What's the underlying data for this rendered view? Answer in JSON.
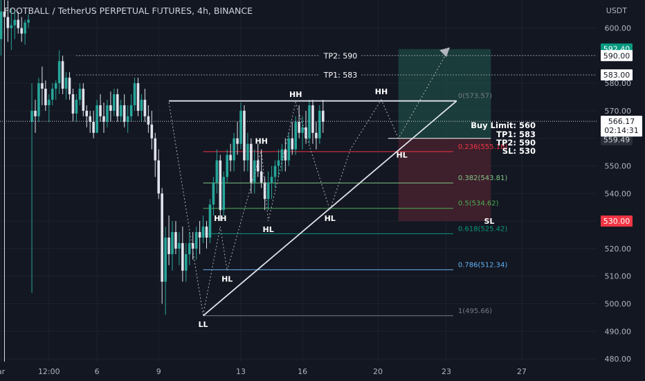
{
  "header": {
    "title": "FOOTBALL / TetherUS PERPETUAL FUTURES, 4h, BINANCE",
    "currency": "USDT"
  },
  "colors": {
    "background": "#131722",
    "up": "#26a69a",
    "down": "#e0e3eb",
    "grid": "#1e222d",
    "text": "#b2b5be",
    "target_zone": "#1d4a44",
    "stop_zone": "#4a2230"
  },
  "chart_data": {
    "type": "candlestick",
    "title": "FOOTBALL / TetherUS PERPETUAL FUTURES, 4h, BINANCE",
    "ylabel": "USDT",
    "ylim": [
      479,
      613
    ],
    "y_ticks": [
      480,
      490,
      500,
      510,
      520,
      530,
      540,
      550,
      560,
      570,
      580,
      590,
      600
    ],
    "x_ticks": [
      {
        "label": "ar",
        "bar": 0
      },
      {
        "label": "12:00",
        "bar": 14
      },
      {
        "label": "6",
        "bar": 28
      },
      {
        "label": "9",
        "bar": 46
      },
      {
        "label": "13",
        "bar": 70
      },
      {
        "label": "16",
        "bar": 88
      },
      {
        "label": "20",
        "bar": 110
      },
      {
        "label": "23",
        "bar": 130
      },
      {
        "label": "27",
        "bar": 152
      }
    ],
    "current_price": "566.17",
    "countdown": "02:14:31",
    "price_tags": [
      {
        "label": "592.40",
        "value": 592.4,
        "kind": "target"
      },
      {
        "label": "590.00",
        "value": 590.0,
        "kind": "neutral"
      },
      {
        "label": "583.00",
        "value": 583.0,
        "kind": "neutral"
      },
      {
        "label": "559.49",
        "value": 559.49,
        "kind": "muted"
      },
      {
        "label": "530.00",
        "value": 530.0,
        "kind": "stop"
      }
    ],
    "fibonacci": [
      {
        "label": "0(573.57)",
        "level": 573.57,
        "color": "#787b86"
      },
      {
        "label": "0.236(555.18)",
        "level": 555.18,
        "color": "#f23645"
      },
      {
        "label": "0.382(543.81)",
        "level": 543.81,
        "color": "#81c784"
      },
      {
        "label": "0.5(534.62)",
        "level": 534.62,
        "color": "#4caf50"
      },
      {
        "label": "0.618(525.42)",
        "level": 525.42,
        "color": "#089981"
      },
      {
        "label": "0.786(512.34)",
        "level": 512.34,
        "color": "#64b5f6"
      },
      {
        "label": "1(495.66)",
        "level": 495.66,
        "color": "#787b86"
      }
    ],
    "targets": [
      {
        "label": "TP2: 590",
        "value": 590
      },
      {
        "label": "TP1: 583",
        "value": 583
      }
    ],
    "trade_text": [
      "Buy Limit: 560",
      "TP1: 583",
      "TP2: 590",
      "SL: 530"
    ],
    "sl_label": "SL",
    "swing_labels": [
      {
        "label": "LL",
        "bar": 47,
        "price": 495.66,
        "pos": "below"
      },
      {
        "label": "HH",
        "bar": 53,
        "price": 528,
        "pos": "above"
      },
      {
        "label": "HL",
        "bar": 54,
        "price": 512,
        "pos": "below"
      },
      {
        "label": "HH",
        "bar": 63,
        "price": 556,
        "pos": "above"
      },
      {
        "label": "HL",
        "bar": 64,
        "price": 530,
        "pos": "below"
      },
      {
        "label": "HH",
        "bar": 71,
        "price": 573,
        "pos": "above"
      },
      {
        "label": "HL",
        "bar": 79,
        "price": 534,
        "pos": "below"
      },
      {
        "label": "HH",
        "bar": 91,
        "price": 574,
        "pos": "above"
      },
      {
        "label": "HL",
        "bar": 95,
        "price": 557,
        "pos": "below"
      }
    ],
    "candles": [
      [
        596,
        612,
        590,
        606
      ],
      [
        606,
        612,
        598,
        604
      ],
      [
        604,
        610,
        595,
        600
      ],
      [
        600,
        607,
        592,
        601
      ],
      [
        601,
        606,
        596,
        603
      ],
      [
        603,
        606,
        598,
        600
      ],
      [
        600,
        604,
        595,
        598
      ],
      [
        598,
        603,
        594,
        602
      ],
      [
        602,
        605,
        600,
        603
      ],
      [
        566,
        580,
        504,
        570
      ],
      [
        570,
        574,
        562,
        568
      ],
      [
        568,
        582,
        566,
        580
      ],
      [
        580,
        586,
        572,
        578
      ],
      [
        578,
        581,
        570,
        572
      ],
      [
        572,
        576,
        566,
        574
      ],
      [
        574,
        580,
        572,
        578
      ],
      [
        578,
        581,
        574,
        580
      ],
      [
        580,
        592,
        576,
        588
      ],
      [
        588,
        590,
        576,
        578
      ],
      [
        578,
        584,
        574,
        582
      ],
      [
        582,
        584,
        574,
        576
      ],
      [
        576,
        578,
        566,
        569
      ],
      [
        569,
        576,
        566,
        574
      ],
      [
        574,
        580,
        572,
        578
      ],
      [
        578,
        580,
        568,
        570
      ],
      [
        570,
        572,
        564,
        568
      ],
      [
        568,
        570,
        562,
        566
      ],
      [
        566,
        570,
        560,
        562
      ],
      [
        562,
        574,
        562,
        572
      ],
      [
        572,
        576,
        566,
        568
      ],
      [
        568,
        573,
        562,
        566
      ],
      [
        566,
        574,
        564,
        572
      ],
      [
        572,
        577,
        566,
        570
      ],
      [
        570,
        578,
        568,
        576
      ],
      [
        576,
        578,
        566,
        568
      ],
      [
        568,
        574,
        566,
        572
      ],
      [
        572,
        576,
        564,
        566
      ],
      [
        566,
        572,
        562,
        568
      ],
      [
        568,
        576,
        566,
        572
      ],
      [
        572,
        582,
        570,
        580
      ],
      [
        580,
        582,
        568,
        570
      ],
      [
        570,
        576,
        566,
        574
      ],
      [
        574,
        578,
        566,
        568
      ],
      [
        568,
        572,
        562,
        565
      ],
      [
        565,
        570,
        556,
        560
      ],
      [
        560,
        562,
        546,
        552
      ],
      [
        552,
        556,
        538,
        540
      ],
      [
        540,
        542,
        500,
        508
      ],
      [
        508,
        528,
        496,
        524
      ],
      [
        524,
        532,
        514,
        518
      ],
      [
        518,
        530,
        512,
        526
      ],
      [
        526,
        530,
        518,
        520
      ],
      [
        520,
        526,
        514,
        522
      ],
      [
        522,
        528,
        508,
        512
      ],
      [
        512,
        522,
        508,
        518
      ],
      [
        518,
        526,
        514,
        522
      ],
      [
        522,
        526,
        516,
        520
      ],
      [
        520,
        528,
        516,
        526
      ],
      [
        526,
        530,
        518,
        524
      ],
      [
        524,
        532,
        522,
        528
      ],
      [
        528,
        530,
        520,
        524
      ],
      [
        524,
        538,
        522,
        536
      ],
      [
        536,
        546,
        532,
        544
      ],
      [
        544,
        556,
        540,
        552
      ],
      [
        552,
        554,
        530,
        534
      ],
      [
        534,
        548,
        532,
        546
      ],
      [
        546,
        556,
        544,
        554
      ],
      [
        554,
        558,
        548,
        552
      ],
      [
        552,
        562,
        548,
        560
      ],
      [
        560,
        566,
        554,
        558
      ],
      [
        558,
        573,
        556,
        570
      ],
      [
        570,
        572,
        548,
        552
      ],
      [
        552,
        562,
        548,
        558
      ],
      [
        558,
        560,
        540,
        544
      ],
      [
        544,
        556,
        540,
        552
      ],
      [
        552,
        558,
        546,
        548
      ],
      [
        548,
        556,
        542,
        544
      ],
      [
        544,
        546,
        534,
        538
      ],
      [
        538,
        548,
        534,
        544
      ],
      [
        544,
        550,
        538,
        546
      ],
      [
        546,
        552,
        542,
        550
      ],
      [
        550,
        556,
        546,
        552
      ],
      [
        552,
        558,
        548,
        556
      ],
      [
        556,
        560,
        548,
        552
      ],
      [
        552,
        562,
        550,
        560
      ],
      [
        560,
        566,
        554,
        556
      ],
      [
        556,
        568,
        554,
        566
      ],
      [
        566,
        572,
        560,
        562
      ],
      [
        562,
        568,
        556,
        564
      ],
      [
        564,
        570,
        558,
        560
      ],
      [
        560,
        574,
        558,
        572
      ],
      [
        572,
        574,
        558,
        562
      ],
      [
        562,
        566,
        556,
        560
      ],
      [
        560,
        572,
        558,
        570
      ],
      [
        570,
        574,
        562,
        566
      ]
    ],
    "candles_format": "open, high, low, close per bar"
  }
}
